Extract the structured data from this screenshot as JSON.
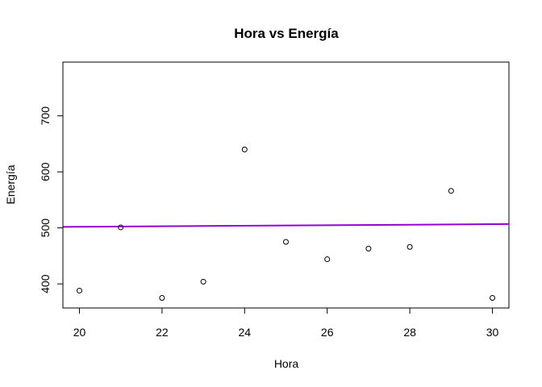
{
  "chart_data": {
    "type": "scatter",
    "title": "Hora vs Energía",
    "xlabel": "Hora",
    "ylabel": "Energía",
    "xlim": [
      19.6,
      30.4
    ],
    "ylim": [
      357,
      796
    ],
    "x_ticks": [
      20,
      22,
      24,
      26,
      28,
      30
    ],
    "y_ticks": [
      400,
      500,
      600,
      700
    ],
    "series": [
      {
        "x": [
          20,
          21,
          22,
          23,
          24,
          25,
          26,
          27,
          28,
          29,
          30
        ],
        "y": [
          388,
          501,
          375,
          404,
          640,
          475,
          444,
          463,
          466,
          566,
          375
        ]
      }
    ],
    "regression_line": {
      "x": [
        19.6,
        30.4
      ],
      "y": [
        501.8,
        506.8
      ],
      "color": "#9400D3"
    },
    "grid": false,
    "legend": "none",
    "colors": {
      "points": "#000000",
      "regression": "#9400D3",
      "axis": "#000000"
    }
  }
}
